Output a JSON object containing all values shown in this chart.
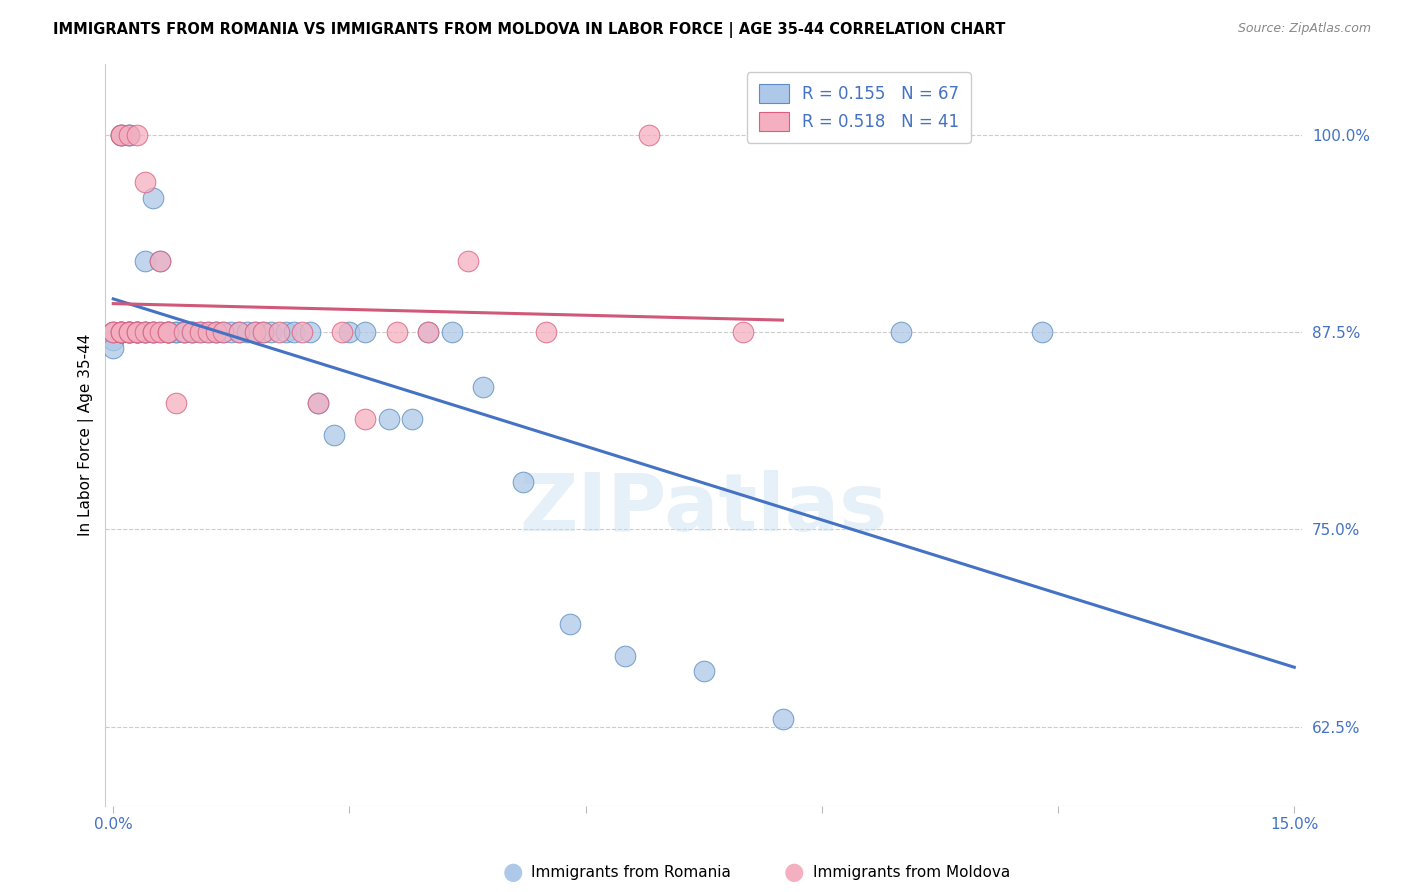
{
  "title": "IMMIGRANTS FROM ROMANIA VS IMMIGRANTS FROM MOLDOVA IN LABOR FORCE | AGE 35-44 CORRELATION CHART",
  "source": "Source: ZipAtlas.com",
  "ylabel": "In Labor Force | Age 35-44",
  "xlim": [
    0.0,
    0.15
  ],
  "ylim": [
    0.575,
    1.045
  ],
  "xticks": [
    0.0,
    0.03,
    0.06,
    0.09,
    0.12,
    0.15
  ],
  "xtick_labels": [
    "0.0%",
    "",
    "",
    "",
    "",
    "15.0%"
  ],
  "yticks": [
    0.625,
    0.75,
    0.875,
    1.0
  ],
  "ytick_labels": [
    "62.5%",
    "75.0%",
    "87.5%",
    "100.0%"
  ],
  "romania_color": "#adc8e8",
  "moldova_color": "#f4afc0",
  "romania_edge_color": "#5b8ec4",
  "moldova_edge_color": "#d96080",
  "romania_line_color": "#4472c4",
  "moldova_line_color": "#d05878",
  "romania_x": [
    0.0,
    0.0,
    0.0,
    0.001,
    0.001,
    0.001,
    0.001,
    0.001,
    0.001,
    0.002,
    0.002,
    0.002,
    0.002,
    0.002,
    0.002,
    0.003,
    0.003,
    0.003,
    0.003,
    0.004,
    0.004,
    0.004,
    0.004,
    0.005,
    0.005,
    0.005,
    0.006,
    0.006,
    0.007,
    0.007,
    0.007,
    0.008,
    0.008,
    0.009,
    0.009,
    0.01,
    0.01,
    0.011,
    0.012,
    0.013,
    0.013,
    0.014,
    0.015,
    0.016,
    0.017,
    0.018,
    0.019,
    0.02,
    0.022,
    0.023,
    0.025,
    0.026,
    0.028,
    0.03,
    0.032,
    0.035,
    0.038,
    0.04,
    0.043,
    0.047,
    0.052,
    0.058,
    0.065,
    0.075,
    0.085,
    0.1,
    0.118
  ],
  "romania_y": [
    0.875,
    0.87,
    0.865,
    1.0,
    1.0,
    0.875,
    0.875,
    0.875,
    0.875,
    1.0,
    1.0,
    0.875,
    0.875,
    0.875,
    0.875,
    0.875,
    0.875,
    0.875,
    0.875,
    0.92,
    0.875,
    0.875,
    0.875,
    0.96,
    0.875,
    0.875,
    0.92,
    0.875,
    0.875,
    0.875,
    0.875,
    0.875,
    0.875,
    0.875,
    0.875,
    0.875,
    0.875,
    0.875,
    0.875,
    0.875,
    0.875,
    0.875,
    0.875,
    0.875,
    0.875,
    0.875,
    0.875,
    0.875,
    0.875,
    0.875,
    0.875,
    0.83,
    0.81,
    0.875,
    0.875,
    0.82,
    0.82,
    0.875,
    0.875,
    0.84,
    0.78,
    0.69,
    0.67,
    0.66,
    0.63,
    0.875,
    0.875
  ],
  "moldova_x": [
    0.0,
    0.0,
    0.001,
    0.001,
    0.001,
    0.001,
    0.002,
    0.002,
    0.002,
    0.003,
    0.003,
    0.003,
    0.004,
    0.004,
    0.005,
    0.005,
    0.006,
    0.006,
    0.007,
    0.007,
    0.008,
    0.009,
    0.01,
    0.011,
    0.012,
    0.013,
    0.014,
    0.016,
    0.018,
    0.019,
    0.021,
    0.024,
    0.026,
    0.029,
    0.032,
    0.036,
    0.04,
    0.045,
    0.055,
    0.068,
    0.08
  ],
  "moldova_y": [
    0.875,
    0.875,
    1.0,
    1.0,
    0.875,
    0.875,
    1.0,
    0.875,
    0.875,
    1.0,
    0.875,
    0.875,
    0.97,
    0.875,
    0.875,
    0.875,
    0.92,
    0.875,
    0.875,
    0.875,
    0.83,
    0.875,
    0.875,
    0.875,
    0.875,
    0.875,
    0.875,
    0.875,
    0.875,
    0.875,
    0.875,
    0.875,
    0.83,
    0.875,
    0.82,
    0.875,
    0.875,
    0.92,
    0.875,
    1.0,
    0.875
  ],
  "legend_entries": [
    {
      "label": "R = 0.155   N = 67",
      "color": "#adc8e8",
      "edge": "#5b8ec4"
    },
    {
      "label": "R = 0.518   N = 41",
      "color": "#f4afc0",
      "edge": "#d96080"
    }
  ],
  "bottom_legend": [
    {
      "label": "Immigrants from Romania",
      "color": "#adc8e8"
    },
    {
      "label": "Immigrants from Moldova",
      "color": "#f4afc0"
    }
  ],
  "watermark_text": "ZIPatlas",
  "watermark_color": "#c8dff0",
  "watermark_alpha": 0.45
}
